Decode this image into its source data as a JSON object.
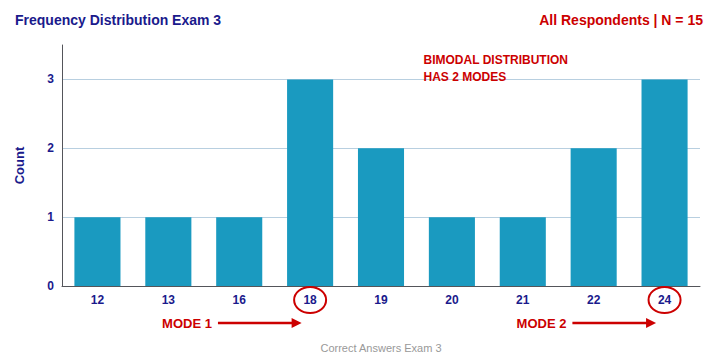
{
  "chart_data": {
    "type": "bar",
    "title": "Frequency Distribution Exam 3",
    "subtitle": "All Respondents | N = 15",
    "xlabel": "Correct Answers Exam 3",
    "ylabel": "Count",
    "categories": [
      12,
      13,
      16,
      18,
      19,
      20,
      21,
      22,
      24
    ],
    "values": [
      1,
      1,
      1,
      3,
      2,
      1,
      1,
      2,
      3
    ],
    "color": "#1a9ac0",
    "ylim": [
      0,
      3.5
    ],
    "yticks": [
      0,
      1,
      2,
      3
    ],
    "grid": true,
    "annotations": [
      {
        "text": "BIMODAL DISTRIBUTION\nHAS 2 MODES"
      },
      {
        "text": "MODE 1",
        "category": 18
      },
      {
        "text": "MODE 2",
        "category": 24
      }
    ]
  }
}
